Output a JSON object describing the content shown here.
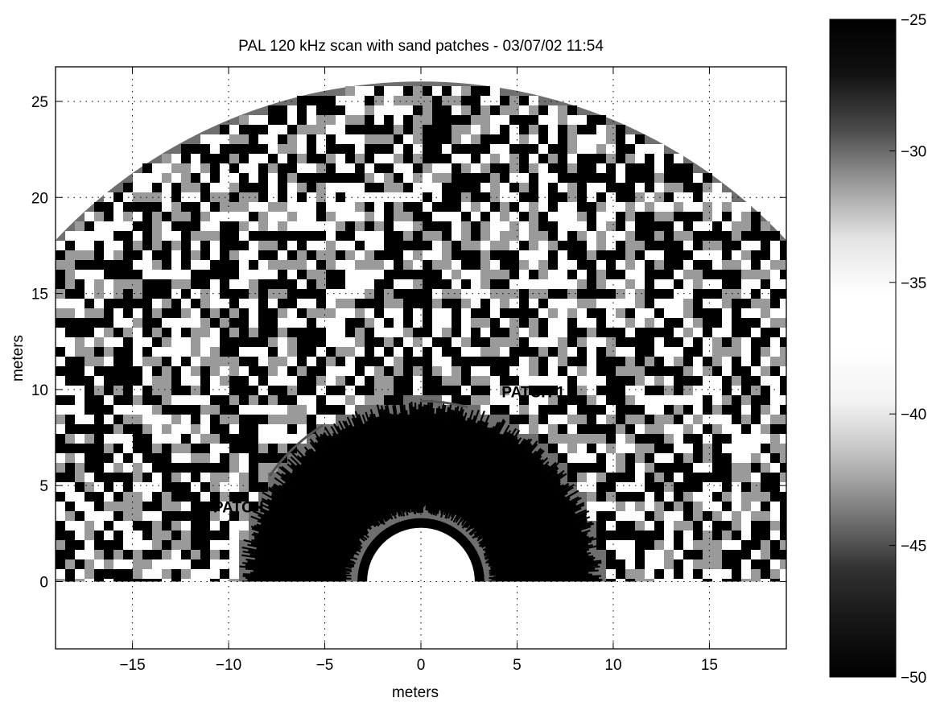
{
  "chart_data": {
    "type": "heatmap",
    "subtype": "polar sonar intensity scan (half-disc)",
    "title": "PAL 120 kHz scan with sand patches - 03/07/02 11:54",
    "xlabel": "meters",
    "ylabel": "meters",
    "xlim": [
      -19,
      19
    ],
    "ylim": [
      -3.5,
      26.8
    ],
    "xticks": [
      -15,
      -10,
      -5,
      0,
      5,
      10,
      15
    ],
    "yticks": [
      0,
      5,
      10,
      15,
      20,
      25
    ],
    "grid": true,
    "grid_style": "dotted",
    "scan_max_range_m": 26,
    "scan_min_range_m": 3.3,
    "inner_blank_radius_m": 2.8,
    "near_field_streak_range_m": [
      3.5,
      9.5
    ],
    "sectors": [
      {
        "label": "PATCH 1",
        "annotation_position": [
          4.2,
          9.6
        ],
        "arc_radius_m": 9.4,
        "angle_range_deg": [
          75,
          90
        ]
      },
      {
        "label": "PATCH 2",
        "annotation_position": [
          -10.8,
          3.6
        ],
        "arc_radius_m": 9.6,
        "angle_range_deg": [
          122,
          145
        ]
      }
    ],
    "colorbar": {
      "min": -50,
      "max": -25,
      "ticks": [
        -25,
        -30,
        -35,
        -40,
        -45,
        -50
      ],
      "colors": [
        "#000000",
        "#111111",
        "#4a4a4a",
        "#9b9b9b",
        "#e3e3e3",
        "#ffffff",
        "#ffffff",
        "#f2f2f2",
        "#bdbdbd",
        "#7a7a7a",
        "#333333",
        "#151515",
        "#000000"
      ]
    }
  }
}
